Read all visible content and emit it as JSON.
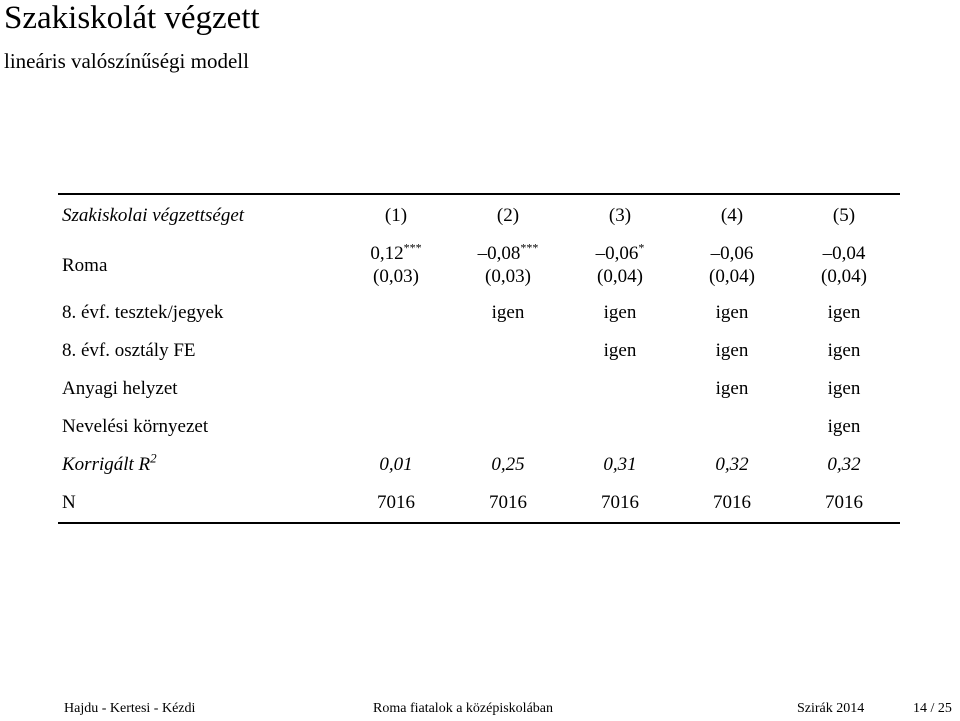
{
  "slide": {
    "title": "Szakiskolát végzett",
    "subtitle": "lineáris valószínűségi modell"
  },
  "table": {
    "header": {
      "label": "Szakiskolai végzettséget",
      "columns": [
        "(1)",
        "(2)",
        "(3)",
        "(4)",
        "(5)"
      ]
    },
    "roma": {
      "label": "Roma",
      "coefficients": [
        {
          "value": "0,12",
          "stars": "***",
          "se": "(0,03)"
        },
        {
          "value": "–0,08",
          "stars": "***",
          "se": "(0,03)"
        },
        {
          "value": "–0,06",
          "stars": "*",
          "se": "(0,04)"
        },
        {
          "value": "–0,06",
          "stars": "",
          "se": "(0,04)"
        },
        {
          "value": "–0,04",
          "stars": "",
          "se": "(0,04)"
        }
      ]
    },
    "controls": [
      {
        "label": "8. évf. tesztek/jegyek",
        "values": [
          "",
          "igen",
          "igen",
          "igen",
          "igen"
        ]
      },
      {
        "label": "8. évf. osztály FE",
        "values": [
          "",
          "",
          "igen",
          "igen",
          "igen"
        ]
      },
      {
        "label": "Anyagi helyzet",
        "values": [
          "",
          "",
          "",
          "igen",
          "igen"
        ]
      },
      {
        "label": "Nevelési környezet",
        "values": [
          "",
          "",
          "",
          "",
          "igen"
        ]
      }
    ],
    "r2": {
      "label": "Korrigált R",
      "label_sup": "2",
      "values": [
        "0,01",
        "0,25",
        "0,31",
        "0,32",
        "0,32"
      ]
    },
    "n": {
      "label": "N",
      "values": [
        "7016",
        "7016",
        "7016",
        "7016",
        "7016"
      ]
    }
  },
  "footer": {
    "authors": "Hajdu - Kertesi - Kézdi",
    "center": "Roma fiatalok a középiskolában",
    "event": "Szirák 2014",
    "page": "14 / 25"
  }
}
